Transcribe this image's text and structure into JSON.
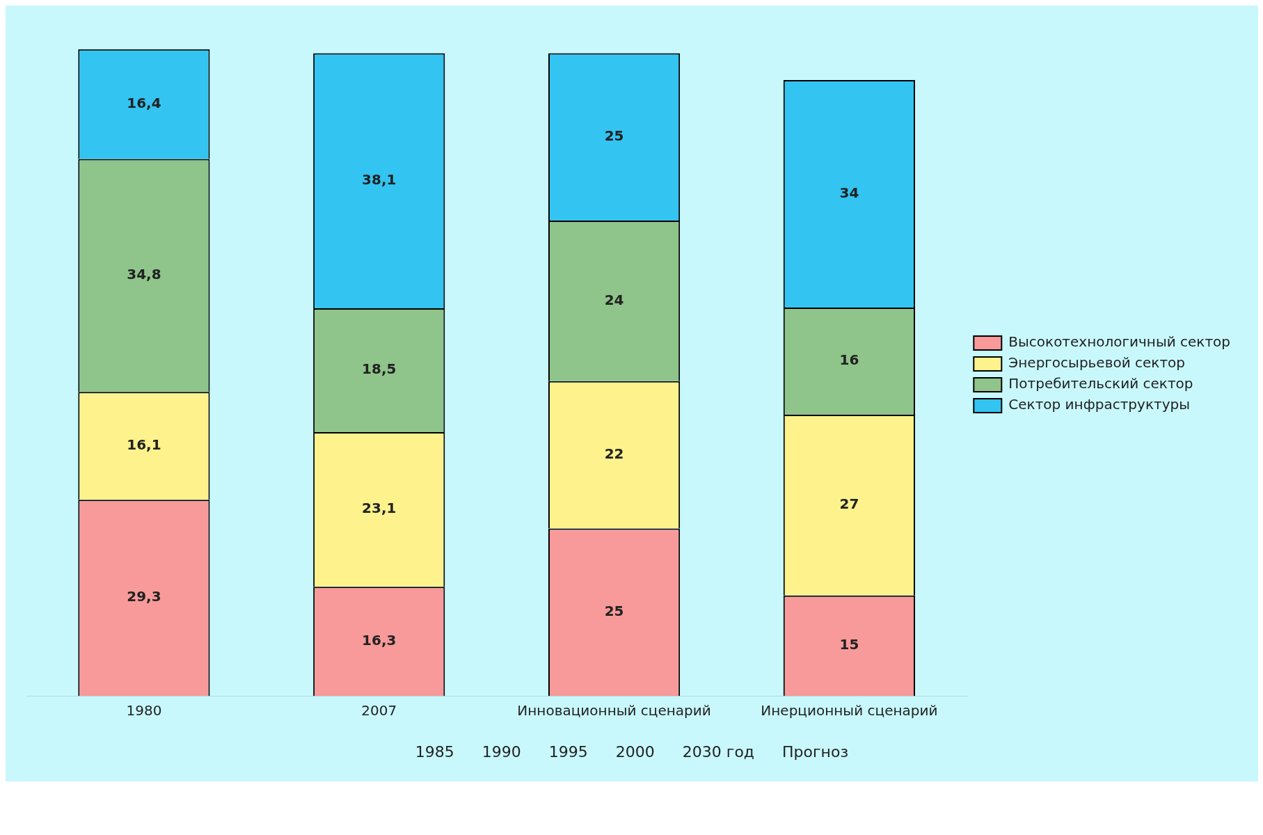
{
  "chart_data": {
    "type": "bar",
    "stacked": true,
    "categories": [
      "1980",
      "2007",
      "Инновационный сценарий",
      "Инерционный сценарий"
    ],
    "series": [
      {
        "name": "Высокотехнологичный сектор",
        "color": "#f89a9a",
        "values": [
          29.3,
          16.3,
          25,
          15
        ],
        "value_labels": [
          "29,3",
          "16,3",
          "25",
          "15"
        ]
      },
      {
        "name": "Энергосырьевой сектор",
        "color": "#fdf28c",
        "values": [
          16.1,
          23.1,
          22,
          27
        ],
        "value_labels": [
          "16,1",
          "23,1",
          "22",
          "27"
        ]
      },
      {
        "name": "Потребительский сектор",
        "color": "#8fc48a",
        "values": [
          34.8,
          18.5,
          24,
          16
        ],
        "value_labels": [
          "34,8",
          "18,5",
          "24",
          "16"
        ]
      },
      {
        "name": "Сектор инфраструктуры",
        "color": "#33c4f2",
        "values": [
          16.4,
          38.1,
          25,
          34
        ],
        "value_labels": [
          "16,4",
          "38,1",
          "25",
          "34"
        ]
      }
    ],
    "legend": "right",
    "annotations": [
      "1985",
      "1990",
      "1995",
      "2000",
      "2030 год",
      "Прогноз"
    ]
  }
}
